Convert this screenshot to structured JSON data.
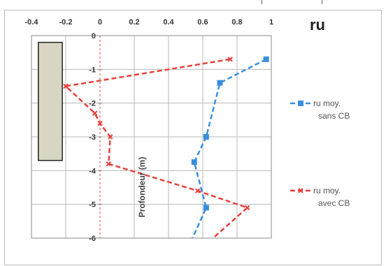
{
  "chart_data": {
    "type": "line",
    "title": "ru",
    "ylabel": "Profondeur (m)",
    "xlabel": "",
    "x_ticks": [
      "-0.4",
      "-0.2",
      "0",
      "0.2",
      "0.4",
      "0.6",
      "0.8",
      "1"
    ],
    "y_ticks": [
      "0",
      "-1",
      "-2",
      "-3",
      "-4",
      "-5",
      "-6"
    ],
    "xlim": [
      -0.4,
      1.0
    ],
    "ylim": [
      -6,
      0
    ],
    "grid": true,
    "legend_position": "right",
    "series": [
      {
        "name": "ru moy.\nsans CB",
        "legend_line1": "ru moy.",
        "legend_line2": "sans CB",
        "color": "#3a8fdd",
        "line_style": "dashed",
        "marker": "square",
        "points": [
          {
            "x": 0.97,
            "y": -0.7
          },
          {
            "x": 0.7,
            "y": -1.4
          },
          {
            "x": 0.62,
            "y": -3.0
          },
          {
            "x": 0.55,
            "y": -3.75
          },
          {
            "x": 0.62,
            "y": -5.1
          }
        ],
        "tail": [
          {
            "x": 0.62,
            "y": -5.1
          },
          {
            "x": 0.54,
            "y": -6.0
          }
        ]
      },
      {
        "name": "ru moy.\navec CB",
        "legend_line1": "ru moy.",
        "legend_line2": "avec CB",
        "color": "#e8413c",
        "line_style": "dashed",
        "marker": "cross",
        "points": [
          {
            "x": 0.76,
            "y": -0.7
          },
          {
            "x": -0.2,
            "y": -1.5
          },
          {
            "x": -0.03,
            "y": -2.3
          },
          {
            "x": 0.0,
            "y": -2.6
          },
          {
            "x": 0.06,
            "y": -3.0
          },
          {
            "x": 0.05,
            "y": -3.8
          },
          {
            "x": 0.57,
            "y": -4.6
          },
          {
            "x": 0.86,
            "y": -5.1
          }
        ],
        "tail": [
          {
            "x": 0.86,
            "y": -5.1
          },
          {
            "x": 0.66,
            "y": -6.0
          }
        ]
      }
    ],
    "bar_annotation": {
      "x_range": [
        -0.36,
        -0.22
      ],
      "y_range": [
        -0.2,
        -3.7
      ],
      "fill": "#d8d6c2"
    },
    "colors": {
      "grid": "#b9b9b9",
      "axis": "#8a8a8a",
      "zero_line": "#e8413c"
    }
  }
}
